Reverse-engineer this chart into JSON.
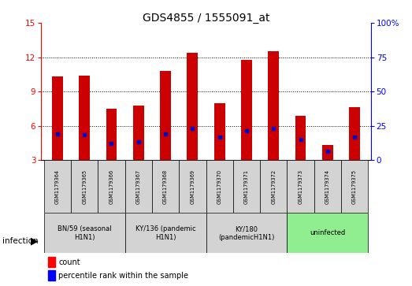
{
  "title": "GDS4855 / 1555091_at",
  "samples": [
    "GSM1179364",
    "GSM1179365",
    "GSM1179366",
    "GSM1179367",
    "GSM1179368",
    "GSM1179369",
    "GSM1179370",
    "GSM1179371",
    "GSM1179372",
    "GSM1179373",
    "GSM1179374",
    "GSM1179375"
  ],
  "counts": [
    10.3,
    10.4,
    7.5,
    7.8,
    10.8,
    12.4,
    8.0,
    11.8,
    12.5,
    6.9,
    4.3,
    7.6
  ],
  "percentile_ranks": [
    5.3,
    5.2,
    4.5,
    4.6,
    5.3,
    5.8,
    5.0,
    5.6,
    5.8,
    4.8,
    3.8,
    5.0
  ],
  "groups": [
    {
      "label": "BN/59 (seasonal\nH1N1)",
      "start": 0,
      "end": 3,
      "color": "#d3d3d3"
    },
    {
      "label": "KY/136 (pandemic\nH1N1)",
      "start": 3,
      "end": 6,
      "color": "#d3d3d3"
    },
    {
      "label": "KY/180\n(pandemicH1N1)",
      "start": 6,
      "end": 9,
      "color": "#d3d3d3"
    },
    {
      "label": "uninfected",
      "start": 9,
      "end": 12,
      "color": "#90EE90"
    }
  ],
  "ylim_left": [
    3,
    15
  ],
  "ylim_right": [
    0,
    100
  ],
  "yticks_left": [
    3,
    6,
    9,
    12,
    15
  ],
  "yticks_right": [
    0,
    25,
    50,
    75,
    100
  ],
  "bar_color": "#CC0000",
  "dot_color": "#0000CC",
  "bar_width": 0.4,
  "background_color": "#ffffff",
  "sample_box_color": "#d3d3d3"
}
